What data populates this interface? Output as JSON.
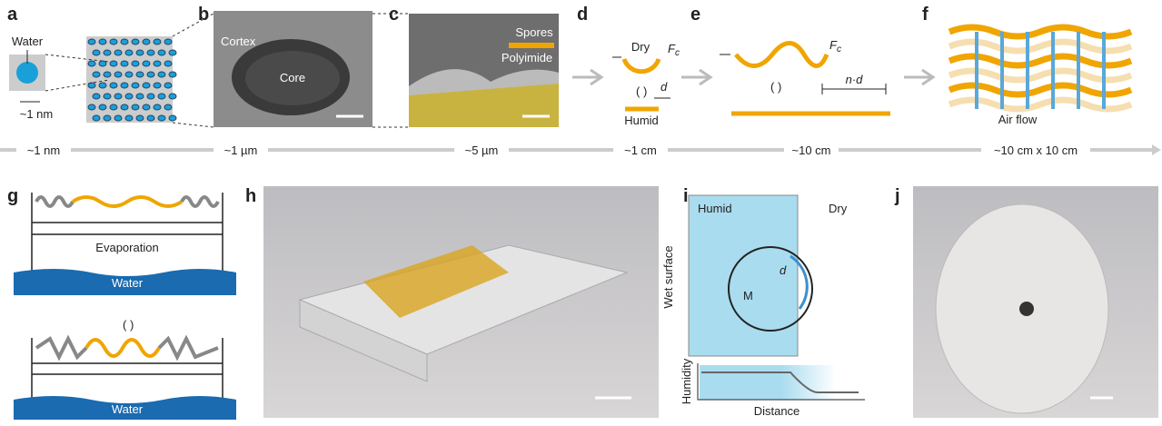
{
  "panel_labels": [
    "a",
    "b",
    "c",
    "d",
    "e",
    "f",
    "g",
    "h",
    "i",
    "j"
  ],
  "a": {
    "water": "Water",
    "scale": "~1 nm"
  },
  "b": {
    "cortex": "Cortex",
    "core": "Core"
  },
  "c": {
    "spores": "Spores",
    "polyimide": "Polyimide"
  },
  "d": {
    "dry": "Dry",
    "force": "F",
    "force_sub": "c",
    "distance": "d",
    "humid": "Humid"
  },
  "e": {
    "force": "F",
    "force_sub": "c",
    "distance": "n·d"
  },
  "f": {
    "air_flow": "Air flow"
  },
  "length_scales": [
    "~1 nm",
    "~1 µm",
    "~5 µm",
    "~1 cm",
    "~10 cm",
    "~10 cm x 10 cm"
  ],
  "g": {
    "evaporation": "Evaporation",
    "water_top": "Water",
    "water_bottom": "Water"
  },
  "i": {
    "humid": "Humid",
    "dry": "Dry",
    "distance": "d",
    "mass": "M",
    "wet_surface": "Wet surface",
    "y_axis": "Humidity",
    "x_axis": "Distance"
  }
}
